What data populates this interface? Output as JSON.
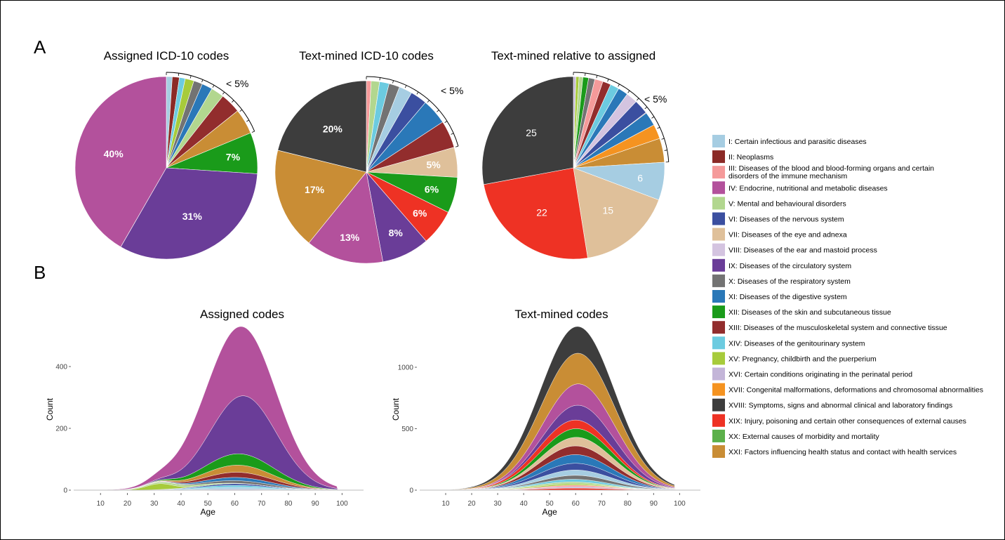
{
  "panel_labels": {
    "a": "A",
    "b": "B"
  },
  "chart_data": [
    {
      "type": "pie",
      "title": "Assigned ICD-10 codes",
      "small_note": "< 5%",
      "slices": [
        {
          "chapter": "I",
          "value": 1.0
        },
        {
          "chapter": "II",
          "value": 1.2
        },
        {
          "chapter": "XIV",
          "value": 1.0
        },
        {
          "chapter": "XV",
          "value": 1.5
        },
        {
          "chapter": "X",
          "value": 1.5
        },
        {
          "chapter": "XI",
          "value": 1.8
        },
        {
          "chapter": "V",
          "value": 2.2
        },
        {
          "chapter": "XIII",
          "value": 3.5
        },
        {
          "chapter": "XXI",
          "value": 4.3
        },
        {
          "chapter": "XII",
          "value": 7.0,
          "label": "7%"
        },
        {
          "chapter": "IX",
          "value": 31.0,
          "label": "31%"
        },
        {
          "chapter": "IV",
          "value": 40.0,
          "label": "40%"
        }
      ],
      "ticks": 9
    },
    {
      "type": "pie",
      "title": "Text-mined ICD-10 codes",
      "small_note": "< 5%",
      "slices": [
        {
          "chapter": "III",
          "value": 0.8
        },
        {
          "chapter": "V",
          "value": 1.4
        },
        {
          "chapter": "XIV",
          "value": 1.6
        },
        {
          "chapter": "X",
          "value": 1.8
        },
        {
          "chapter": "I",
          "value": 2.2
        },
        {
          "chapter": "VI",
          "value": 2.8
        },
        {
          "chapter": "XI",
          "value": 4.3
        },
        {
          "chapter": "XIII",
          "value": 4.6
        },
        {
          "chapter": "VII",
          "value": 5.0,
          "label": "5%"
        },
        {
          "chapter": "XII",
          "value": 6.0,
          "label": "6%"
        },
        {
          "chapter": "XIX",
          "value": 6.0,
          "label": "6%"
        },
        {
          "chapter": "IX",
          "value": 8.0,
          "label": "8%"
        },
        {
          "chapter": "IV",
          "value": 13.0,
          "label": "13%"
        },
        {
          "chapter": "XXI",
          "value": 17.0,
          "label": "17%"
        },
        {
          "chapter": "XVIII",
          "value": 20.0,
          "label": "20%"
        }
      ],
      "ticks": 9
    },
    {
      "type": "pie",
      "title": "Text-mined relative to assigned",
      "small_note": "< 5%",
      "slices": [
        {
          "chapter": "XVI",
          "value": 0.4
        },
        {
          "chapter": "XV",
          "value": 0.5
        },
        {
          "chapter": "V",
          "value": 0.6
        },
        {
          "chapter": "XII",
          "value": 0.9
        },
        {
          "chapter": "X",
          "value": 1.0
        },
        {
          "chapter": "III",
          "value": 1.3
        },
        {
          "chapter": "XIII",
          "value": 1.3
        },
        {
          "chapter": "XIV",
          "value": 1.4
        },
        {
          "chapter": "XI",
          "value": 1.6
        },
        {
          "chapter": "VIII",
          "value": 1.8
        },
        {
          "chapter": "VI",
          "value": 2.3
        },
        {
          "chapter": "II",
          "value": 0.1
        },
        {
          "chapter": "XI",
          "value": 2.2
        },
        {
          "chapter": "XVII",
          "value": 2.3
        },
        {
          "chapter": "XXI",
          "value": 3.8
        },
        {
          "chapter": "I",
          "value": 6.0,
          "label": "6"
        },
        {
          "chapter": "VII",
          "value": 15.0,
          "label": "15"
        },
        {
          "chapter": "XIX",
          "value": 22.0,
          "label": "22"
        },
        {
          "chapter": "XVIII",
          "value": 25.0,
          "label": "25"
        }
      ],
      "ticks": 12
    },
    {
      "type": "area",
      "title": "Assigned codes",
      "xlabel": "Age",
      "ylabel": "Count",
      "xlim": [
        0,
        108
      ],
      "ylim": [
        0,
        400
      ],
      "xticks": [
        "10",
        "20",
        "30",
        "40",
        "50",
        "60",
        "70",
        "80",
        "90",
        "100"
      ],
      "yticks": [
        "0",
        "200",
        "400"
      ],
      "layers": [
        {
          "chapter": "XVI",
          "center": 60,
          "width": 13,
          "peak": 3
        },
        {
          "chapter": "I",
          "center": 60,
          "width": 13,
          "peak": 6
        },
        {
          "chapter": "XIV",
          "center": 60,
          "width": 13,
          "peak": 6
        },
        {
          "chapter": "VI",
          "center": 60,
          "width": 13,
          "peak": 5
        },
        {
          "chapter": "XV",
          "center": 32,
          "width": 5,
          "peak": 18
        },
        {
          "chapter": "V",
          "center": 40,
          "width": 12,
          "peak": 6
        },
        {
          "chapter": "X",
          "center": 62,
          "width": 13,
          "peak": 8
        },
        {
          "chapter": "XI",
          "center": 62,
          "width": 13,
          "peak": 10
        },
        {
          "chapter": "XIII",
          "center": 62,
          "width": 13,
          "peak": 16
        },
        {
          "chapter": "XXI",
          "center": 62,
          "width": 13,
          "peak": 22
        },
        {
          "chapter": "XII",
          "center": 62,
          "width": 13,
          "peak": 35
        },
        {
          "chapter": "IX",
          "center": 64,
          "width": 12,
          "peak": 180
        },
        {
          "chapter": "IV",
          "center": 61,
          "width": 14,
          "peak": 215
        }
      ]
    },
    {
      "type": "area",
      "title": "Text-mined codes",
      "xlabel": "Age",
      "ylabel": "Count",
      "xlim": [
        0,
        108
      ],
      "ylim": [
        0,
        1000
      ],
      "xticks": [
        "10",
        "20",
        "30",
        "40",
        "50",
        "60",
        "70",
        "80",
        "90",
        "100"
      ],
      "yticks": [
        "0",
        "500",
        "1000"
      ],
      "layers": [
        {
          "chapter": "XIX",
          "center": 60,
          "width": 14,
          "peak": 15
        },
        {
          "chapter": "XVI",
          "center": 60,
          "width": 14,
          "peak": 10
        },
        {
          "chapter": "III",
          "center": 60,
          "width": 14,
          "peak": 12
        },
        {
          "chapter": "XV",
          "center": 55,
          "width": 14,
          "peak": 10
        },
        {
          "chapter": "V",
          "center": 58,
          "width": 14,
          "peak": 15
        },
        {
          "chapter": "XIV",
          "center": 60,
          "width": 14,
          "peak": 20
        },
        {
          "chapter": "X",
          "center": 62,
          "width": 14,
          "peak": 30
        },
        {
          "chapter": "I",
          "center": 60,
          "width": 14,
          "peak": 40
        },
        {
          "chapter": "VI",
          "center": 60,
          "width": 14,
          "peak": 50
        },
        {
          "chapter": "XI",
          "center": 60,
          "width": 14,
          "peak": 65
        },
        {
          "chapter": "XIII",
          "center": 60,
          "width": 14,
          "peak": 65
        },
        {
          "chapter": "VII",
          "center": 62,
          "width": 14,
          "peak": 65
        },
        {
          "chapter": "XII",
          "center": 60,
          "width": 14,
          "peak": 65
        },
        {
          "chapter": "XIX",
          "center": 58,
          "width": 15,
          "peak": 65
        },
        {
          "chapter": "IX",
          "center": 64,
          "width": 13,
          "peak": 115
        },
        {
          "chapter": "IV",
          "center": 62,
          "width": 14,
          "peak": 160
        },
        {
          "chapter": "XXI",
          "center": 60,
          "width": 15,
          "peak": 230
        },
        {
          "chapter": "XVIII",
          "center": 60,
          "width": 15,
          "peak": 200
        }
      ]
    }
  ],
  "legend": [
    {
      "chapter": "I",
      "color": "#a6cde2",
      "label": "I: Certain infectious and parasitic diseases"
    },
    {
      "chapter": "II",
      "color": "#8b2a26",
      "label": "II: Neoplasms"
    },
    {
      "chapter": "III",
      "color": "#f59a9a",
      "label": "III: Diseases of the blood and blood-forming organs and certain",
      "label2": "disorders of the immune mechanism"
    },
    {
      "chapter": "IV",
      "color": "#b3519c",
      "label": "IV: Endocrine, nutritional and metabolic diseases"
    },
    {
      "chapter": "V",
      "color": "#b2d78f",
      "label": "V: Mental and behavioural disorders"
    },
    {
      "chapter": "VI",
      "color": "#3b4fa0",
      "label": "VI: Diseases of the nervous system"
    },
    {
      "chapter": "VII",
      "color": "#dfc09a",
      "label": "VII: Diseases of the eye and adnexa"
    },
    {
      "chapter": "VIII",
      "color": "#d4c4e0",
      "label": "VIII: Diseases of the ear and mastoid process"
    },
    {
      "chapter": "IX",
      "color": "#6a3d98",
      "label": "IX: Diseases of the circulatory system"
    },
    {
      "chapter": "X",
      "color": "#737373",
      "label": "X: Diseases of the respiratory system"
    },
    {
      "chapter": "XI",
      "color": "#2a78b8",
      "label": "XI: Diseases of the digestive system"
    },
    {
      "chapter": "XII",
      "color": "#1a9b1a",
      "label": "XII: Diseases of the skin and subcutaneous tissue"
    },
    {
      "chapter": "XIII",
      "color": "#922d2d",
      "label": "XIII: Diseases of the musculoskeletal system and connective tissue"
    },
    {
      "chapter": "XIV",
      "color": "#6ccbe0",
      "label": "XIV: Diseases of the genitourinary system"
    },
    {
      "chapter": "XV",
      "color": "#a7cb3b",
      "label": "XV: Pregnancy, childbirth and the puerperium"
    },
    {
      "chapter": "XVI",
      "color": "#c3b5d8",
      "label": "XVI: Certain conditions originating in the perinatal period"
    },
    {
      "chapter": "XVII",
      "color": "#f59320",
      "label": "XVII: Congenital malformations, deformations and chromosomal abnormalities"
    },
    {
      "chapter": "XVIII",
      "color": "#3d3d3d",
      "label": "XVIII: Symptoms, signs and abnormal clinical and laboratory findings"
    },
    {
      "chapter": "XIX",
      "color": "#ee3224",
      "label": "XIX: Injury, poisoning and certain other consequences of external causes"
    },
    {
      "chapter": "XX",
      "color": "#5bb04a",
      "label": "XX: External causes of morbidity and mortality"
    },
    {
      "chapter": "XXI",
      "color": "#c98d35",
      "label": "XXI: Factors influencing health status and contact with health services"
    }
  ]
}
